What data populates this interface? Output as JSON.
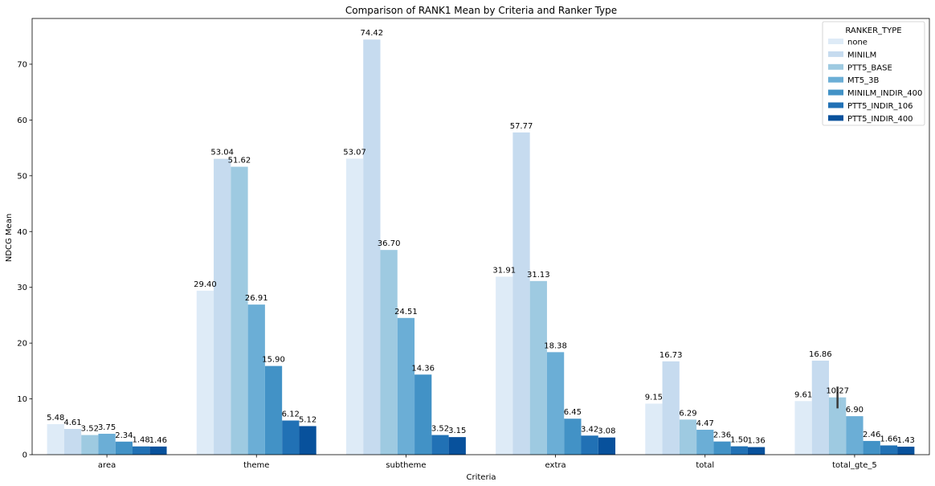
{
  "chart_data": {
    "type": "bar",
    "title": "Comparison of RANK1 Mean by Criteria and Ranker Type",
    "xlabel": "Criteria",
    "ylabel": "NDCG Mean",
    "ylim": [
      0,
      78.2
    ],
    "yticks": [
      0,
      10,
      20,
      30,
      40,
      50,
      60,
      70
    ],
    "grid": false,
    "legend": {
      "title": "RANKER_TYPE",
      "placement": "top-right"
    },
    "categories": [
      "area",
      "theme",
      "subtheme",
      "extra",
      "total",
      "total_gte_5"
    ],
    "series": [
      {
        "name": "none",
        "color": "#deebf7",
        "values": [
          5.48,
          29.4,
          53.07,
          31.91,
          9.15,
          9.61
        ],
        "labels": [
          "5.48",
          "29.40",
          "53.07",
          "31.91",
          "9.15",
          "9.61"
        ]
      },
      {
        "name": "MINILM",
        "color": "#c6dbef",
        "values": [
          4.61,
          53.04,
          74.42,
          57.77,
          16.73,
          16.86
        ],
        "labels": [
          "4.61",
          "53.04",
          "74.42",
          "57.77",
          "16.73",
          "16.86"
        ]
      },
      {
        "name": "PTT5_BASE",
        "color": "#9ecae1",
        "values": [
          3.52,
          51.62,
          36.7,
          31.13,
          6.29,
          10.27
        ],
        "labels": [
          "3.52",
          "51.62",
          "36.70",
          "31.13",
          "6.29",
          "10.27"
        ],
        "error": [
          null,
          null,
          null,
          null,
          null,
          [
            8.3,
            12.2
          ]
        ]
      },
      {
        "name": "MT5_3B",
        "color": "#6baed6",
        "values": [
          3.75,
          26.91,
          24.51,
          18.38,
          4.47,
          6.9
        ],
        "labels": [
          "3.75",
          "26.91",
          "24.51",
          "18.38",
          "4.47",
          "6.90"
        ]
      },
      {
        "name": "MINILM_INDIR_400",
        "color": "#4292c6",
        "values": [
          2.34,
          15.9,
          14.36,
          6.45,
          2.36,
          2.46
        ],
        "labels": [
          "2.34",
          "15.90",
          "14.36",
          "6.45",
          "2.36",
          "2.46"
        ]
      },
      {
        "name": "PTT5_INDIR_106",
        "color": "#2171b5",
        "values": [
          1.48,
          6.12,
          3.52,
          3.42,
          1.5,
          1.66
        ],
        "labels": [
          "1.48",
          "6.12",
          "3.52",
          "3.42",
          "1.50",
          "1.66"
        ]
      },
      {
        "name": "PTT5_INDIR_400",
        "color": "#08519c",
        "values": [
          1.46,
          5.12,
          3.15,
          3.08,
          1.36,
          1.43
        ],
        "labels": [
          "1.46",
          "5.12",
          "3.15",
          "3.08",
          "1.36",
          "1.43"
        ]
      }
    ]
  }
}
